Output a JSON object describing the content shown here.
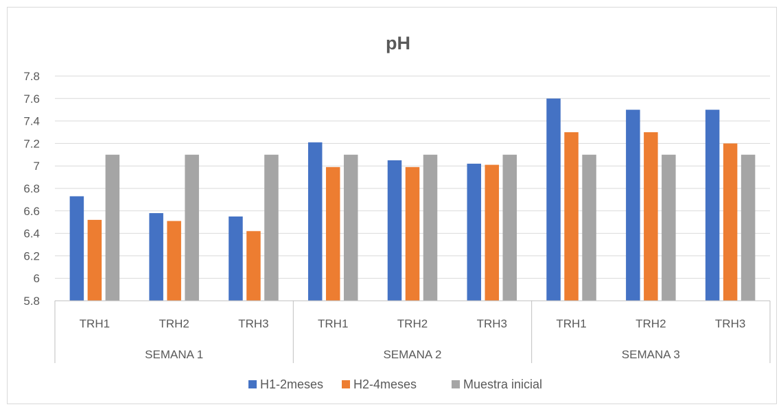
{
  "chart_data": {
    "type": "bar",
    "title": "pH",
    "xlabel": "",
    "ylabel": "",
    "ylim": [
      5.8,
      7.8
    ],
    "yticks": [
      "5.8",
      "6",
      "6.2",
      "6.4",
      "6.6",
      "6.8",
      "7",
      "7.2",
      "7.4",
      "7.6",
      "7.8"
    ],
    "grid": true,
    "legend_position": "bottom",
    "groups": [
      {
        "label": "SEMANA 1",
        "categories": [
          "TRH1",
          "TRH2",
          "TRH3"
        ]
      },
      {
        "label": "SEMANA 2",
        "categories": [
          "TRH1",
          "TRH2",
          "TRH3"
        ]
      },
      {
        "label": "SEMANA 3",
        "categories": [
          "TRH1",
          "TRH2",
          "TRH3"
        ]
      }
    ],
    "series": [
      {
        "name": "H1-2meses",
        "color": "#4472c4",
        "values": [
          6.73,
          6.58,
          6.55,
          7.21,
          7.05,
          7.02,
          7.6,
          7.5,
          7.5
        ]
      },
      {
        "name": "H2-4meses",
        "color": "#ed7d31",
        "values": [
          6.52,
          6.51,
          6.42,
          6.99,
          6.99,
          7.01,
          7.3,
          7.3,
          7.2
        ]
      },
      {
        "name": "Muestra inicial",
        "color": "#a5a5a5",
        "values": [
          7.1,
          7.1,
          7.1,
          7.1,
          7.1,
          7.1,
          7.1,
          7.1,
          7.1
        ]
      }
    ]
  }
}
